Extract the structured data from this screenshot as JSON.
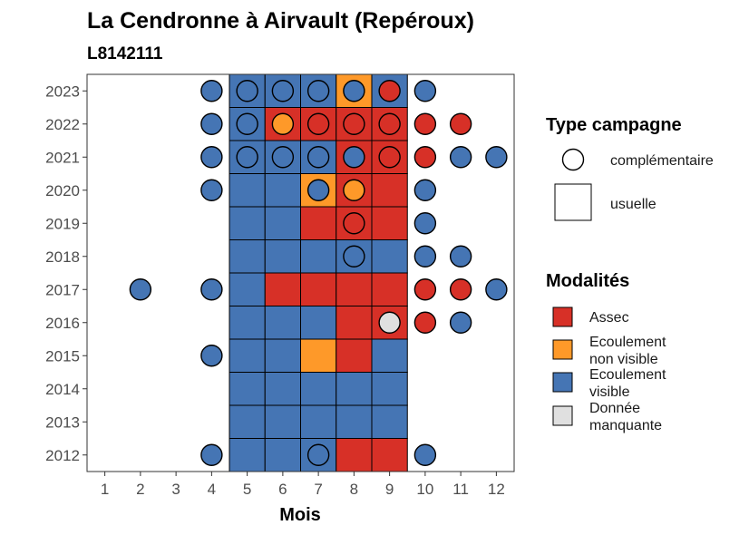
{
  "chart_data": {
    "type": "heatmap",
    "title": "La Cendronne à  Airvault (Repéroux)",
    "subtitle": "L8142111",
    "xlabel": "Mois",
    "ylabel": "",
    "x_ticks": [
      "1",
      "2",
      "3",
      "4",
      "5",
      "6",
      "7",
      "8",
      "9",
      "10",
      "11",
      "12"
    ],
    "y_ticks": [
      "2012",
      "2013",
      "2014",
      "2015",
      "2016",
      "2017",
      "2018",
      "2019",
      "2020",
      "2021",
      "2022",
      "2023"
    ],
    "xlim": [
      0.5,
      12.5
    ],
    "ylim": [
      2011.5,
      2023.5
    ],
    "grid": false,
    "legend_position": "right",
    "legends": {
      "shape": {
        "title": "Type campagne",
        "items": [
          {
            "key": "complementaire",
            "label": "complémentaire",
            "shape": "circle"
          },
          {
            "key": "usuelle",
            "label": "usuelle",
            "shape": "square"
          }
        ]
      },
      "fill": {
        "title": "Modalités",
        "items": [
          {
            "key": "assec",
            "label_lines": [
              "Assec"
            ],
            "color": "#d73027"
          },
          {
            "key": "ecoulement_non_visible",
            "label_lines": [
              "Ecoulement",
              "non visible"
            ],
            "color": "#fe9929"
          },
          {
            "key": "ecoulement_visible",
            "label_lines": [
              "Ecoulement",
              "visible"
            ],
            "color": "#4575b4"
          },
          {
            "key": "donnee_manquante",
            "label_lines": [
              "Donnée",
              "manquante"
            ],
            "color": "#e0e0e0"
          }
        ]
      }
    },
    "squares": [
      {
        "year": 2023,
        "month": 5,
        "mod": "ecoulement_visible"
      },
      {
        "year": 2023,
        "month": 6,
        "mod": "ecoulement_visible"
      },
      {
        "year": 2023,
        "month": 7,
        "mod": "ecoulement_visible"
      },
      {
        "year": 2023,
        "month": 8,
        "mod": "ecoulement_non_visible"
      },
      {
        "year": 2023,
        "month": 9,
        "mod": "ecoulement_visible"
      },
      {
        "year": 2022,
        "month": 5,
        "mod": "ecoulement_visible"
      },
      {
        "year": 2022,
        "month": 6,
        "mod": "assec"
      },
      {
        "year": 2022,
        "month": 7,
        "mod": "assec"
      },
      {
        "year": 2022,
        "month": 8,
        "mod": "assec"
      },
      {
        "year": 2022,
        "month": 9,
        "mod": "assec"
      },
      {
        "year": 2021,
        "month": 5,
        "mod": "ecoulement_visible"
      },
      {
        "year": 2021,
        "month": 6,
        "mod": "ecoulement_visible"
      },
      {
        "year": 2021,
        "month": 7,
        "mod": "ecoulement_visible"
      },
      {
        "year": 2021,
        "month": 8,
        "mod": "assec"
      },
      {
        "year": 2021,
        "month": 9,
        "mod": "assec"
      },
      {
        "year": 2020,
        "month": 5,
        "mod": "ecoulement_visible"
      },
      {
        "year": 2020,
        "month": 6,
        "mod": "ecoulement_visible"
      },
      {
        "year": 2020,
        "month": 7,
        "mod": "ecoulement_non_visible"
      },
      {
        "year": 2020,
        "month": 8,
        "mod": "assec"
      },
      {
        "year": 2020,
        "month": 9,
        "mod": "assec"
      },
      {
        "year": 2019,
        "month": 5,
        "mod": "ecoulement_visible"
      },
      {
        "year": 2019,
        "month": 6,
        "mod": "ecoulement_visible"
      },
      {
        "year": 2019,
        "month": 7,
        "mod": "assec"
      },
      {
        "year": 2019,
        "month": 8,
        "mod": "assec"
      },
      {
        "year": 2019,
        "month": 9,
        "mod": "assec"
      },
      {
        "year": 2018,
        "month": 5,
        "mod": "ecoulement_visible"
      },
      {
        "year": 2018,
        "month": 6,
        "mod": "ecoulement_visible"
      },
      {
        "year": 2018,
        "month": 7,
        "mod": "ecoulement_visible"
      },
      {
        "year": 2018,
        "month": 8,
        "mod": "ecoulement_visible"
      },
      {
        "year": 2018,
        "month": 9,
        "mod": "ecoulement_visible"
      },
      {
        "year": 2017,
        "month": 5,
        "mod": "ecoulement_visible"
      },
      {
        "year": 2017,
        "month": 6,
        "mod": "assec"
      },
      {
        "year": 2017,
        "month": 7,
        "mod": "assec"
      },
      {
        "year": 2017,
        "month": 8,
        "mod": "assec"
      },
      {
        "year": 2017,
        "month": 9,
        "mod": "assec"
      },
      {
        "year": 2016,
        "month": 5,
        "mod": "ecoulement_visible"
      },
      {
        "year": 2016,
        "month": 6,
        "mod": "ecoulement_visible"
      },
      {
        "year": 2016,
        "month": 7,
        "mod": "ecoulement_visible"
      },
      {
        "year": 2016,
        "month": 8,
        "mod": "assec"
      },
      {
        "year": 2016,
        "month": 9,
        "mod": "assec"
      },
      {
        "year": 2015,
        "month": 5,
        "mod": "ecoulement_visible"
      },
      {
        "year": 2015,
        "month": 6,
        "mod": "ecoulement_visible"
      },
      {
        "year": 2015,
        "month": 7,
        "mod": "ecoulement_non_visible"
      },
      {
        "year": 2015,
        "month": 8,
        "mod": "assec"
      },
      {
        "year": 2015,
        "month": 9,
        "mod": "ecoulement_visible"
      },
      {
        "year": 2014,
        "month": 5,
        "mod": "ecoulement_visible"
      },
      {
        "year": 2014,
        "month": 6,
        "mod": "ecoulement_visible"
      },
      {
        "year": 2014,
        "month": 7,
        "mod": "ecoulement_visible"
      },
      {
        "year": 2014,
        "month": 8,
        "mod": "ecoulement_visible"
      },
      {
        "year": 2014,
        "month": 9,
        "mod": "ecoulement_visible"
      },
      {
        "year": 2013,
        "month": 5,
        "mod": "ecoulement_visible"
      },
      {
        "year": 2013,
        "month": 6,
        "mod": "ecoulement_visible"
      },
      {
        "year": 2013,
        "month": 7,
        "mod": "ecoulement_visible"
      },
      {
        "year": 2013,
        "month": 8,
        "mod": "ecoulement_visible"
      },
      {
        "year": 2013,
        "month": 9,
        "mod": "ecoulement_visible"
      },
      {
        "year": 2012,
        "month": 5,
        "mod": "ecoulement_visible"
      },
      {
        "year": 2012,
        "month": 6,
        "mod": "ecoulement_visible"
      },
      {
        "year": 2012,
        "month": 7,
        "mod": "ecoulement_visible"
      },
      {
        "year": 2012,
        "month": 8,
        "mod": "assec"
      },
      {
        "year": 2012,
        "month": 9,
        "mod": "assec"
      }
    ],
    "circles": [
      {
        "year": 2023,
        "month": 4,
        "mod": "ecoulement_visible"
      },
      {
        "year": 2023,
        "month": 5,
        "mod": "ecoulement_visible"
      },
      {
        "year": 2023,
        "month": 6,
        "mod": "ecoulement_visible"
      },
      {
        "year": 2023,
        "month": 7,
        "mod": "ecoulement_visible"
      },
      {
        "year": 2023,
        "month": 8,
        "mod": "ecoulement_visible"
      },
      {
        "year": 2023,
        "month": 9,
        "mod": "assec"
      },
      {
        "year": 2023,
        "month": 10,
        "mod": "ecoulement_visible"
      },
      {
        "year": 2022,
        "month": 4,
        "mod": "ecoulement_visible"
      },
      {
        "year": 2022,
        "month": 5,
        "mod": "ecoulement_visible"
      },
      {
        "year": 2022,
        "month": 6,
        "mod": "ecoulement_non_visible"
      },
      {
        "year": 2022,
        "month": 7,
        "mod": "assec"
      },
      {
        "year": 2022,
        "month": 8,
        "mod": "assec"
      },
      {
        "year": 2022,
        "month": 9,
        "mod": "assec"
      },
      {
        "year": 2022,
        "month": 10,
        "mod": "assec"
      },
      {
        "year": 2022,
        "month": 11,
        "mod": "assec"
      },
      {
        "year": 2021,
        "month": 4,
        "mod": "ecoulement_visible"
      },
      {
        "year": 2021,
        "month": 5,
        "mod": "ecoulement_visible"
      },
      {
        "year": 2021,
        "month": 6,
        "mod": "ecoulement_visible"
      },
      {
        "year": 2021,
        "month": 7,
        "mod": "ecoulement_visible"
      },
      {
        "year": 2021,
        "month": 8,
        "mod": "ecoulement_visible"
      },
      {
        "year": 2021,
        "month": 9,
        "mod": "assec"
      },
      {
        "year": 2021,
        "month": 10,
        "mod": "assec"
      },
      {
        "year": 2021,
        "month": 11,
        "mod": "ecoulement_visible"
      },
      {
        "year": 2021,
        "month": 12,
        "mod": "ecoulement_visible"
      },
      {
        "year": 2020,
        "month": 4,
        "mod": "ecoulement_visible"
      },
      {
        "year": 2020,
        "month": 7,
        "mod": "ecoulement_visible"
      },
      {
        "year": 2020,
        "month": 8,
        "mod": "ecoulement_non_visible"
      },
      {
        "year": 2020,
        "month": 10,
        "mod": "ecoulement_visible"
      },
      {
        "year": 2019,
        "month": 8,
        "mod": "assec"
      },
      {
        "year": 2019,
        "month": 10,
        "mod": "ecoulement_visible"
      },
      {
        "year": 2018,
        "month": 8,
        "mod": "ecoulement_visible"
      },
      {
        "year": 2018,
        "month": 10,
        "mod": "ecoulement_visible"
      },
      {
        "year": 2018,
        "month": 11,
        "mod": "ecoulement_visible"
      },
      {
        "year": 2017,
        "month": 2,
        "mod": "ecoulement_visible"
      },
      {
        "year": 2017,
        "month": 4,
        "mod": "ecoulement_visible"
      },
      {
        "year": 2017,
        "month": 10,
        "mod": "assec"
      },
      {
        "year": 2017,
        "month": 11,
        "mod": "assec"
      },
      {
        "year": 2017,
        "month": 12,
        "mod": "ecoulement_visible"
      },
      {
        "year": 2016,
        "month": 9,
        "mod": "donnee_manquante"
      },
      {
        "year": 2016,
        "month": 10,
        "mod": "assec"
      },
      {
        "year": 2016,
        "month": 11,
        "mod": "ecoulement_visible"
      },
      {
        "year": 2015,
        "month": 4,
        "mod": "ecoulement_visible"
      },
      {
        "year": 2012,
        "month": 4,
        "mod": "ecoulement_visible"
      },
      {
        "year": 2012,
        "month": 7,
        "mod": "ecoulement_visible"
      },
      {
        "year": 2012,
        "month": 10,
        "mod": "ecoulement_visible"
      }
    ]
  }
}
